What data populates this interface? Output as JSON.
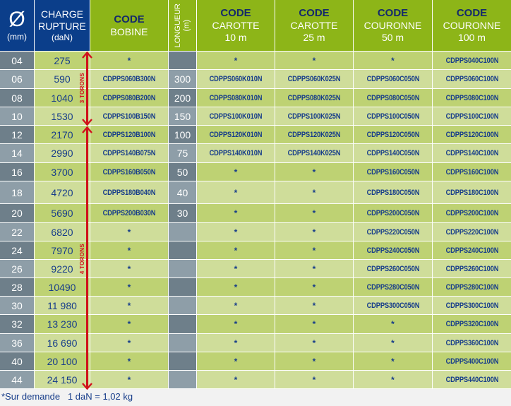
{
  "header": {
    "diameter_symbol": "Ø",
    "diameter_unit": "(mm)",
    "charge_line1": "CHARGE",
    "charge_line2": "RUPTURE",
    "charge_unit": "(daN)",
    "bobine_code": "CODE",
    "bobine_label": "BOBINE",
    "longueur_label": "LONGUEUR",
    "longueur_unit": "(m)",
    "carotte10_code": "CODE",
    "carotte10_label": "CAROTTE",
    "carotte10_len": "10 m",
    "carotte25_code": "CODE",
    "carotte25_label": "CAROTTE",
    "carotte25_len": "25 m",
    "couronne50_code": "CODE",
    "couronne50_label": "COURONNE",
    "couronne50_len": "50 m",
    "couronne100_code": "CODE",
    "couronne100_label": "COURONNE",
    "couronne100_len": "100 m"
  },
  "rows": [
    {
      "dia": "04",
      "charge": "275",
      "bobine": "*",
      "longueur": "",
      "carotte10": "*",
      "carotte25": "*",
      "couronne50": "*",
      "couronne100": "CDPPS040C100N"
    },
    {
      "dia": "06",
      "charge": "590",
      "bobine": "CDPPS060B300N",
      "longueur": "300",
      "carotte10": "CDPPS060K010N",
      "carotte25": "CDPPS060K025N",
      "couronne50": "CDPPS060C050N",
      "couronne100": "CDPPS060C100N"
    },
    {
      "dia": "08",
      "charge": "1040",
      "bobine": "CDPPS080B200N",
      "longueur": "200",
      "carotte10": "CDPPS080K010N",
      "carotte25": "CDPPS080K025N",
      "couronne50": "CDPPS080C050N",
      "couronne100": "CDPPS080C100N"
    },
    {
      "dia": "10",
      "charge": "1530",
      "bobine": "CDPPS100B150N",
      "longueur": "150",
      "carotte10": "CDPPS100K010N",
      "carotte25": "CDPPS100K025N",
      "couronne50": "CDPPS100C050N",
      "couronne100": "CDPPS100C100N"
    },
    {
      "dia": "12",
      "charge": "2170",
      "bobine": "CDPPS120B100N",
      "longueur": "100",
      "carotte10": "CDPPS120K010N",
      "carotte25": "CDPPS120K025N",
      "couronne50": "CDPPS120C050N",
      "couronne100": "CDPPS120C100N"
    },
    {
      "dia": "14",
      "charge": "2990",
      "bobine": "CDPPS140B075N",
      "longueur": "75",
      "carotte10": "CDPPS140K010N",
      "carotte25": "CDPPS140K025N",
      "couronne50": "CDPPS140C050N",
      "couronne100": "CDPPS140C100N"
    },
    {
      "dia": "16",
      "charge": "3700",
      "bobine": "CDPPS160B050N",
      "longueur": "50",
      "carotte10": "*",
      "carotte25": "*",
      "couronne50": "CDPPS160C050N",
      "couronne100": "CDPPS160C100N"
    },
    {
      "dia": "18",
      "charge": "4720",
      "bobine": "CDPPS180B040N",
      "longueur": "40",
      "carotte10": "*",
      "carotte25": "*",
      "couronne50": "CDPPS180C050N",
      "couronne100": "CDPPS180C100N"
    },
    {
      "dia": "20",
      "charge": "5690",
      "bobine": "CDPPS200B030N",
      "longueur": "30",
      "carotte10": "*",
      "carotte25": "*",
      "couronne50": "CDPPS200C050N",
      "couronne100": "CDPPS200C100N"
    },
    {
      "dia": "22",
      "charge": "6820",
      "bobine": "*",
      "longueur": "",
      "carotte10": "*",
      "carotte25": "*",
      "couronne50": "CDPPS220C050N",
      "couronne100": "CDPPS220C100N"
    },
    {
      "dia": "24",
      "charge": "7970",
      "bobine": "*",
      "longueur": "",
      "carotte10": "*",
      "carotte25": "*",
      "couronne50": "CDPPS240C050N",
      "couronne100": "CDPPS240C100N"
    },
    {
      "dia": "26",
      "charge": "9220",
      "bobine": "*",
      "longueur": "",
      "carotte10": "*",
      "carotte25": "*",
      "couronne50": "CDPPS260C050N",
      "couronne100": "CDPPS260C100N"
    },
    {
      "dia": "28",
      "charge": "10490",
      "bobine": "*",
      "longueur": "",
      "carotte10": "*",
      "carotte25": "*",
      "couronne50": "CDPPS280C050N",
      "couronne100": "CDPPS280C100N"
    },
    {
      "dia": "30",
      "charge": "11 980",
      "bobine": "*",
      "longueur": "",
      "carotte10": "*",
      "carotte25": "*",
      "couronne50": "CDPPS300C050N",
      "couronne100": "CDPPS300C100N"
    },
    {
      "dia": "32",
      "charge": "13 230",
      "bobine": "*",
      "longueur": "",
      "carotte10": "*",
      "carotte25": "*",
      "couronne50": "*",
      "couronne100": "CDPPS320C100N"
    },
    {
      "dia": "36",
      "charge": "16 690",
      "bobine": "*",
      "longueur": "",
      "carotte10": "*",
      "carotte25": "*",
      "couronne50": "*",
      "couronne100": "CDPPS360C100N"
    },
    {
      "dia": "40",
      "charge": "20 100",
      "bobine": "*",
      "longueur": "",
      "carotte10": "*",
      "carotte25": "*",
      "couronne50": "*",
      "couronne100": "CDPPS400C100N"
    },
    {
      "dia": "44",
      "charge": "24 150",
      "bobine": "*",
      "longueur": "",
      "carotte10": "*",
      "carotte25": "*",
      "couronne50": "*",
      "couronne100": "CDPPS440C100N"
    }
  ],
  "annotations": {
    "three_strands": "3 TORONS",
    "four_strands": "4 TORONS"
  },
  "footer": {
    "note": "*Sur demande   1 daN = 1,02 kg"
  },
  "colors": {
    "header_blue": "#0b3e8a",
    "header_green": "#8db518",
    "code_text": "#14296b",
    "arrow_red": "#d0111b",
    "row_green_dark": "#bed273",
    "row_green_light": "#cfdd9a",
    "row_gray_dark": "#6e7f8a",
    "row_gray_light": "#8e9ea8"
  }
}
